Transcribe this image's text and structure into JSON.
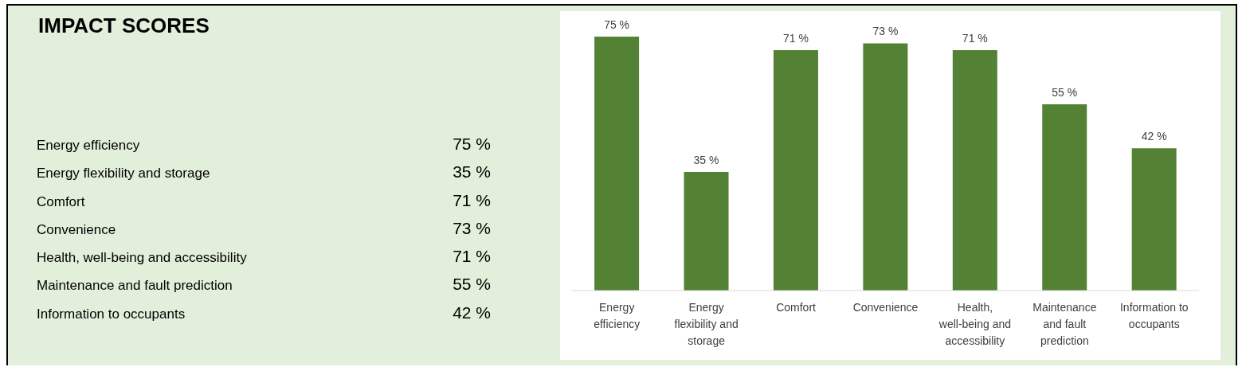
{
  "chart_data": {
    "type": "bar",
    "title": "IMPACT SCORES",
    "categories": [
      "Energy efficiency",
      "Energy flexibility and storage",
      "Comfort",
      "Convenience",
      "Health, well-being and accessibility",
      "Maintenance and fault prediction",
      "Information to occupants"
    ],
    "values": [
      75,
      35,
      71,
      73,
      71,
      55,
      42
    ],
    "value_labels": [
      "75 %",
      "35 %",
      "71 %",
      "73 %",
      "71 %",
      "55 %",
      "42 %"
    ],
    "color": "#548235",
    "grid": false,
    "legend": false
  }
}
